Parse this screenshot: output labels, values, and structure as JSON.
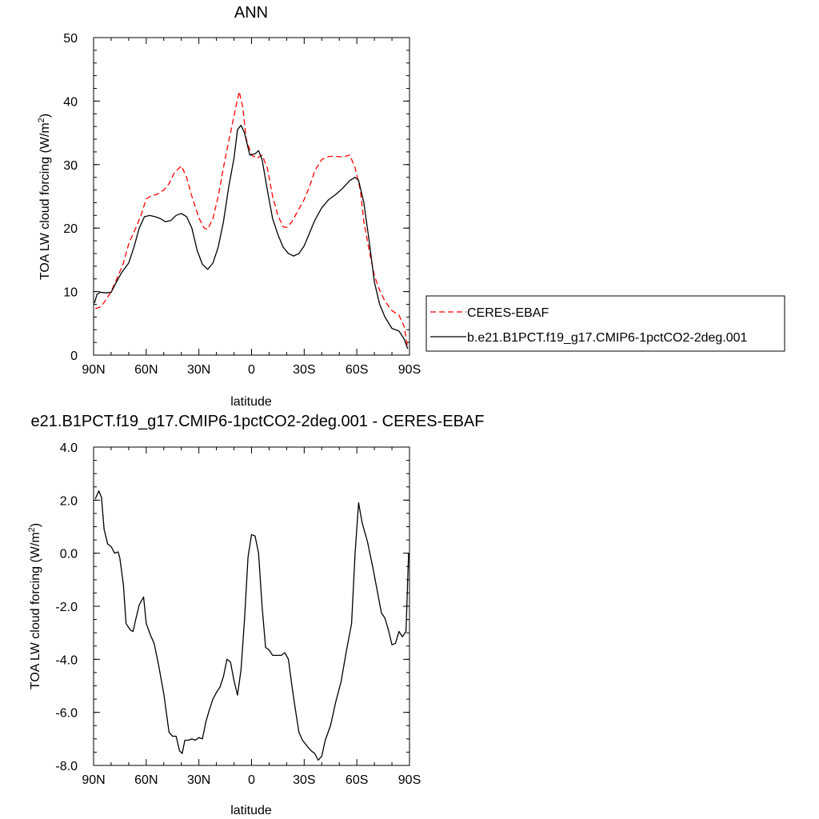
{
  "chart_data": [
    {
      "type": "line",
      "title": "ANN",
      "xlabel": "latitude",
      "ylabel": "TOA LW cloud forcing (W/m",
      "ylabel_sup": "2",
      "ylabel_close": ")",
      "xlim": [
        90,
        -90
      ],
      "ylim": [
        0,
        50
      ],
      "xticks": [
        90,
        60,
        30,
        0,
        -30,
        -60,
        -90
      ],
      "xtick_labels": [
        "90N",
        "60N",
        "30N",
        "0",
        "30S",
        "60S",
        "90S"
      ],
      "yticks": [
        0,
        10,
        20,
        30,
        40,
        50
      ],
      "ytick_labels": [
        "0",
        "10",
        "20",
        "30",
        "40",
        "50"
      ],
      "legend_position": "right",
      "series": [
        {
          "name": "CERES-EBAF",
          "color": "#ff0000",
          "dash": "dashed",
          "points": [
            [
              89,
              7.3
            ],
            [
              86,
              7.6
            ],
            [
              84,
              8.3
            ],
            [
              80,
              10
            ],
            [
              76,
              12.5
            ],
            [
              73,
              14.5
            ],
            [
              70,
              17.5
            ],
            [
              66,
              20
            ],
            [
              63,
              22
            ],
            [
              60,
              24.6
            ],
            [
              57,
              25.1
            ],
            [
              54,
              25.3
            ],
            [
              50,
              26
            ],
            [
              47,
              27
            ],
            [
              44,
              28.7
            ],
            [
              40,
              29.8
            ],
            [
              37,
              28
            ],
            [
              34,
              25
            ],
            [
              30,
              21.6
            ],
            [
              27,
              20
            ],
            [
              25,
              19.8
            ],
            [
              22,
              21.5
            ],
            [
              19,
              25
            ],
            [
              15,
              31
            ],
            [
              12,
              35
            ],
            [
              9,
              39
            ],
            [
              7,
              41.5
            ],
            [
              5,
              39
            ],
            [
              3,
              34
            ],
            [
              0,
              31.5
            ],
            [
              -3,
              31
            ],
            [
              -6,
              31.5
            ],
            [
              -9,
              29.5
            ],
            [
              -12,
              25
            ],
            [
              -15,
              22
            ],
            [
              -18,
              20.2
            ],
            [
              -20,
              20.1
            ],
            [
              -23,
              21
            ],
            [
              -27,
              23
            ],
            [
              -30,
              24.5
            ],
            [
              -33,
              26.5
            ],
            [
              -36,
              29
            ],
            [
              -40,
              30.8
            ],
            [
              -44,
              31.3
            ],
            [
              -48,
              31.3
            ],
            [
              -52,
              31.2
            ],
            [
              -56,
              31.5
            ],
            [
              -59,
              29.5
            ],
            [
              -62,
              26
            ],
            [
              -64,
              21
            ],
            [
              -67,
              16.5
            ],
            [
              -70,
              12.5
            ],
            [
              -73,
              10.2
            ],
            [
              -76,
              8.5
            ],
            [
              -80,
              7
            ],
            [
              -84,
              6.3
            ],
            [
              -87,
              4.5
            ],
            [
              -89,
              1
            ]
          ]
        },
        {
          "name": "b.e21.B1PCT.f19_g17.CMIP6-1pctCO2-2deg.001",
          "color": "#000000",
          "dash": "solid",
          "points": [
            [
              89.5,
              8.2
            ],
            [
              88,
              9.6
            ],
            [
              86,
              9.9
            ],
            [
              83,
              9.8
            ],
            [
              80,
              9.9
            ],
            [
              77,
              11.5
            ],
            [
              74,
              13
            ],
            [
              70,
              14.5
            ],
            [
              67,
              17
            ],
            [
              64,
              20
            ],
            [
              61,
              21.8
            ],
            [
              58,
              22
            ],
            [
              55,
              21.8
            ],
            [
              52,
              21.5
            ],
            [
              49,
              21
            ],
            [
              46,
              21.2
            ],
            [
              43,
              22
            ],
            [
              40,
              22.3
            ],
            [
              37,
              21.8
            ],
            [
              34,
              20
            ],
            [
              31,
              16.5
            ],
            [
              28,
              14.3
            ],
            [
              25,
              13.5
            ],
            [
              22,
              14.5
            ],
            [
              19,
              17
            ],
            [
              16,
              21
            ],
            [
              13,
              26.5
            ],
            [
              10,
              31
            ],
            [
              8,
              35.5
            ],
            [
              6,
              36.2
            ],
            [
              4,
              35
            ],
            [
              1,
              31.5
            ],
            [
              -2,
              31.7
            ],
            [
              -4,
              32.2
            ],
            [
              -6,
              30.8
            ],
            [
              -9,
              26
            ],
            [
              -12,
              21.5
            ],
            [
              -15,
              19
            ],
            [
              -18,
              17
            ],
            [
              -21,
              16
            ],
            [
              -24,
              15.6
            ],
            [
              -27,
              16
            ],
            [
              -30,
              17.2
            ],
            [
              -33,
              19.2
            ],
            [
              -36,
              21.2
            ],
            [
              -40,
              23.2
            ],
            [
              -44,
              24.5
            ],
            [
              -48,
              25.3
            ],
            [
              -52,
              26.3
            ],
            [
              -56,
              27.5
            ],
            [
              -59,
              28
            ],
            [
              -61,
              27.5
            ],
            [
              -64,
              24
            ],
            [
              -67,
              18
            ],
            [
              -70,
              11.5
            ],
            [
              -73,
              8
            ],
            [
              -76,
              6
            ],
            [
              -80,
              4.2
            ],
            [
              -84,
              3.8
            ],
            [
              -87,
              2.5
            ],
            [
              -89,
              1
            ]
          ]
        }
      ]
    },
    {
      "type": "line",
      "title": "e21.B1PCT.f19_g17.CMIP6-1pctCO2-2deg.001 - CERES-EBAF",
      "xlabel": "latitude",
      "ylabel": "TOA LW cloud forcing (W/m",
      "ylabel_sup": "2",
      "ylabel_close": ")",
      "xlim": [
        90,
        -90
      ],
      "ylim": [
        -8,
        4
      ],
      "xticks": [
        90,
        60,
        30,
        0,
        -30,
        -60,
        -90
      ],
      "xtick_labels": [
        "90N",
        "60N",
        "30N",
        "0",
        "30S",
        "60S",
        "90S"
      ],
      "yticks": [
        -8,
        -6,
        -4,
        -2,
        0,
        2,
        4
      ],
      "ytick_labels": [
        "-8.0",
        "-6.0",
        "-4.0",
        "-2.0",
        "0.0",
        "2.0",
        "4.0"
      ],
      "series": [
        {
          "color": "#000000",
          "dash": "solid",
          "points": [
            [
              89,
              2.05
            ],
            [
              87,
              2.35
            ],
            [
              85.5,
              2.1
            ],
            [
              84,
              0.9
            ],
            [
              82,
              0.35
            ],
            [
              80,
              0.25
            ],
            [
              78,
              0
            ],
            [
              76,
              0.05
            ],
            [
              75,
              -0.2
            ],
            [
              73,
              -1.2
            ],
            [
              71.5,
              -2.65
            ],
            [
              69,
              -2.9
            ],
            [
              67.5,
              -2.95
            ],
            [
              66,
              -2.5
            ],
            [
              64,
              -1.95
            ],
            [
              61.5,
              -1.65
            ],
            [
              60,
              -2.65
            ],
            [
              57.5,
              -3.1
            ],
            [
              55.5,
              -3.4
            ],
            [
              53,
              -4.2
            ],
            [
              50,
              -5.3
            ],
            [
              47,
              -6.75
            ],
            [
              45,
              -6.9
            ],
            [
              43,
              -6.9
            ],
            [
              41,
              -7.45
            ],
            [
              39.5,
              -7.55
            ],
            [
              38,
              -7.05
            ],
            [
              36,
              -7.05
            ],
            [
              34,
              -7.0
            ],
            [
              32,
              -7.05
            ],
            [
              30,
              -6.95
            ],
            [
              28,
              -7.0
            ],
            [
              26,
              -6.35
            ],
            [
              24,
              -5.9
            ],
            [
              22,
              -5.5
            ],
            [
              20,
              -5.25
            ],
            [
              18,
              -5.05
            ],
            [
              16,
              -4.65
            ],
            [
              14,
              -4.0
            ],
            [
              12,
              -4.1
            ],
            [
              10,
              -4.8
            ],
            [
              8,
              -5.35
            ],
            [
              6,
              -4.4
            ],
            [
              4,
              -2.5
            ],
            [
              2,
              -0.15
            ],
            [
              0,
              0.7
            ],
            [
              -2,
              0.65
            ],
            [
              -4,
              0
            ],
            [
              -6,
              -2
            ],
            [
              -8,
              -3.55
            ],
            [
              -10,
              -3.65
            ],
            [
              -12,
              -3.85
            ],
            [
              -15,
              -3.85
            ],
            [
              -17,
              -3.85
            ],
            [
              -19,
              -3.75
            ],
            [
              -21,
              -4.0
            ],
            [
              -23,
              -5.0
            ],
            [
              -25,
              -5.9
            ],
            [
              -27,
              -6.75
            ],
            [
              -29,
              -7.05
            ],
            [
              -32,
              -7.3
            ],
            [
              -34,
              -7.45
            ],
            [
              -36,
              -7.55
            ],
            [
              -38,
              -7.8
            ],
            [
              -40,
              -7.65
            ],
            [
              -42,
              -7.05
            ],
            [
              -45,
              -6.5
            ],
            [
              -48,
              -5.6
            ],
            [
              -51,
              -4.85
            ],
            [
              -54,
              -3.7
            ],
            [
              -57,
              -2.65
            ],
            [
              -59,
              0
            ],
            [
              -61,
              1.9
            ],
            [
              -63,
              1.15
            ],
            [
              -66,
              0.45
            ],
            [
              -69,
              -0.5
            ],
            [
              -72,
              -1.55
            ],
            [
              -74,
              -2.25
            ],
            [
              -76,
              -2.45
            ],
            [
              -78,
              -2.9
            ],
            [
              -80,
              -3.45
            ],
            [
              -82,
              -3.4
            ],
            [
              -84,
              -2.95
            ],
            [
              -86,
              -3.15
            ],
            [
              -88,
              -2.95
            ],
            [
              -89.5,
              0
            ]
          ]
        }
      ]
    }
  ]
}
